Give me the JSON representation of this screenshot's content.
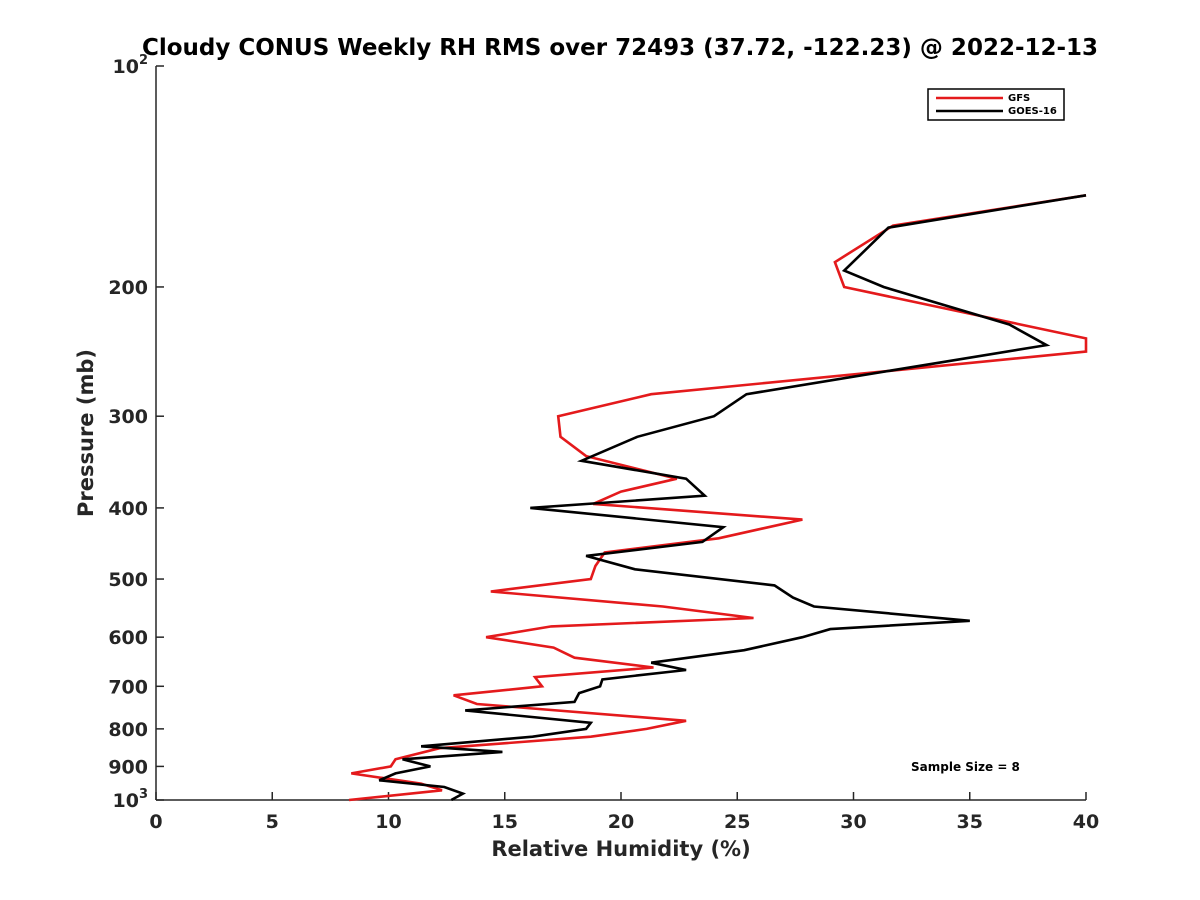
{
  "chart_data": {
    "type": "line",
    "title": "Cloudy CONUS Weekly RH RMS over 72493 (37.72, -122.23) @ 2022-12-13",
    "xlabel": "Relative Humidity (%)",
    "ylabel": "Pressure (mb)",
    "xlim": [
      0,
      40
    ],
    "ylim": [
      1000,
      100
    ],
    "y_scale": "log",
    "y_reversed": true,
    "x_ticks": [
      "0",
      "5",
      "10",
      "15",
      "20",
      "25",
      "30",
      "35",
      "40"
    ],
    "y_ticks": [
      {
        "value": 100,
        "label": "10",
        "exp": "2"
      },
      {
        "value": 200,
        "label": "200"
      },
      {
        "value": 300,
        "label": "300"
      },
      {
        "value": 400,
        "label": "400"
      },
      {
        "value": 500,
        "label": "500"
      },
      {
        "value": 600,
        "label": "600"
      },
      {
        "value": 700,
        "label": "700"
      },
      {
        "value": 800,
        "label": "800"
      },
      {
        "value": 900,
        "label": "900"
      },
      {
        "value": 1000,
        "label": "10",
        "exp": "3"
      }
    ],
    "grid": false,
    "legend_position": "top-right",
    "series": [
      {
        "name": "GFS",
        "color": "#e41a1c",
        "points": [
          [
            40.0,
            150
          ],
          [
            31.7,
            165
          ],
          [
            29.2,
            185
          ],
          [
            29.6,
            200
          ],
          [
            40.0,
            235
          ],
          [
            40.0,
            245
          ],
          [
            21.3,
            280
          ],
          [
            17.3,
            300
          ],
          [
            17.4,
            320
          ],
          [
            18.5,
            340
          ],
          [
            22.4,
            365
          ],
          [
            20.0,
            380
          ],
          [
            18.8,
            395
          ],
          [
            27.8,
            415
          ],
          [
            24.2,
            440
          ],
          [
            19.3,
            460
          ],
          [
            18.9,
            480
          ],
          [
            18.7,
            500
          ],
          [
            14.4,
            520
          ],
          [
            21.8,
            545
          ],
          [
            25.7,
            565
          ],
          [
            17.0,
            580
          ],
          [
            14.2,
            600
          ],
          [
            17.1,
            620
          ],
          [
            18.0,
            640
          ],
          [
            21.4,
            660
          ],
          [
            16.3,
            680
          ],
          [
            16.6,
            700
          ],
          [
            12.8,
            720
          ],
          [
            13.8,
            740
          ],
          [
            22.8,
            780
          ],
          [
            21.1,
            800
          ],
          [
            18.7,
            820
          ],
          [
            12.2,
            850
          ],
          [
            10.3,
            880
          ],
          [
            10.1,
            900
          ],
          [
            8.4,
            920
          ],
          [
            11.4,
            950
          ],
          [
            12.3,
            970
          ],
          [
            8.3,
            1000
          ]
        ]
      },
      {
        "name": "GOES-16",
        "color": "#000000",
        "points": [
          [
            40.0,
            150
          ],
          [
            31.5,
            166
          ],
          [
            29.6,
            190
          ],
          [
            31.3,
            200
          ],
          [
            36.7,
            225
          ],
          [
            38.3,
            240
          ],
          [
            25.4,
            280
          ],
          [
            24.0,
            300
          ],
          [
            20.7,
            320
          ],
          [
            18.3,
            345
          ],
          [
            22.8,
            365
          ],
          [
            23.6,
            385
          ],
          [
            16.1,
            400
          ],
          [
            24.4,
            425
          ],
          [
            23.5,
            445
          ],
          [
            18.5,
            465
          ],
          [
            20.6,
            485
          ],
          [
            26.6,
            510
          ],
          [
            27.4,
            530
          ],
          [
            28.3,
            545
          ],
          [
            35.0,
            570
          ],
          [
            29.0,
            585
          ],
          [
            27.8,
            600
          ],
          [
            25.3,
            625
          ],
          [
            21.3,
            650
          ],
          [
            22.8,
            665
          ],
          [
            19.2,
            685
          ],
          [
            19.1,
            700
          ],
          [
            18.2,
            715
          ],
          [
            18.0,
            735
          ],
          [
            13.3,
            755
          ],
          [
            18.7,
            785
          ],
          [
            18.5,
            800
          ],
          [
            16.2,
            820
          ],
          [
            11.4,
            845
          ],
          [
            14.9,
            860
          ],
          [
            10.6,
            880
          ],
          [
            11.8,
            900
          ],
          [
            10.3,
            920
          ],
          [
            9.6,
            940
          ],
          [
            12.4,
            960
          ],
          [
            13.2,
            980
          ],
          [
            12.7,
            1000
          ]
        ]
      }
    ],
    "annotations": [
      "Sample Size = 8"
    ]
  }
}
